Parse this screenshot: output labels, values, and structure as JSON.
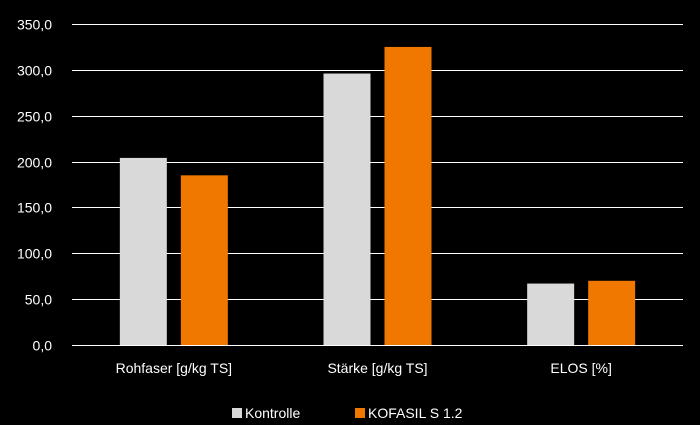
{
  "chart_data": {
    "type": "bar",
    "categories": [
      "Rohfaser [g/kg TS]",
      "Stärke [g/kg TS]",
      "ELOS [%]"
    ],
    "series": [
      {
        "name": "Kontrolle",
        "color": "#d9d9d9",
        "values": [
          204,
          296,
          67
        ]
      },
      {
        "name": "KOFASIL S 1.2",
        "color": "#f07800",
        "values": [
          185,
          325,
          70
        ]
      }
    ],
    "ylim": [
      0,
      350
    ],
    "yticks": [
      "0,0",
      "50,0",
      "100,0",
      "150,0",
      "200,0",
      "250,0",
      "300,0",
      "350,0"
    ],
    "ytick_values": [
      0,
      50,
      100,
      150,
      200,
      250,
      300,
      350
    ],
    "grid": true,
    "legend_position": "bottom",
    "background": "#000000"
  }
}
